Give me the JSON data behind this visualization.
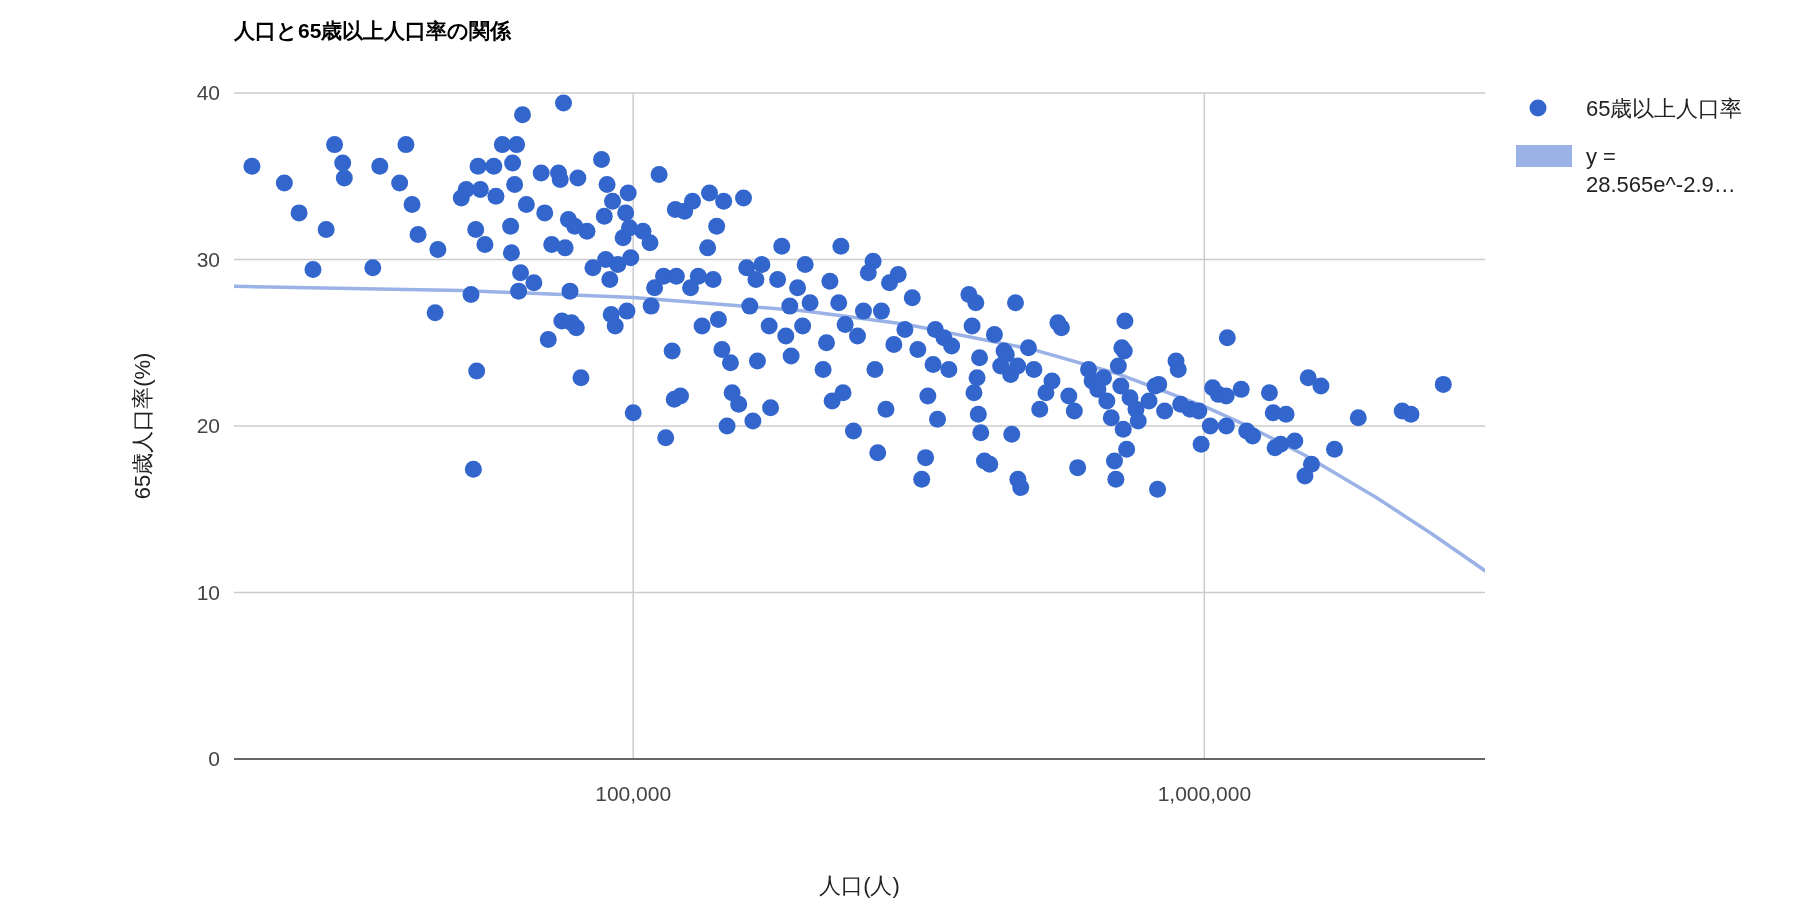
{
  "chart_data": {
    "type": "scatter",
    "title": "人口と65歳以上人口率の関係",
    "xlabel": "人口(人)",
    "ylabel": "65歳人口率(%)",
    "log": "x",
    "grid": true,
    "legend": "right",
    "marker": "circle",
    "xlim": [
      20000,
      3100000
    ],
    "xticks": [
      {
        "value": 100000,
        "label": "100,000"
      },
      {
        "value": 1000000,
        "label": "1,000,000"
      }
    ],
    "ylim": [
      0,
      40
    ],
    "yticks": [
      0,
      10,
      20,
      30,
      40
    ],
    "series": [
      {
        "name": "65歳以上人口率",
        "color": "#3366cc",
        "x": [
          21500,
          24500,
          26000,
          27500,
          29000,
          30000,
          31000,
          31200,
          35000,
          36000,
          39000,
          40000,
          41000,
          42000,
          45000,
          45500,
          50000,
          51000,
          52000,
          52500,
          53000,
          53200,
          53500,
          54000,
          55000,
          57000,
          57500,
          59000,
          61000,
          61200,
          61500,
          62000,
          62500,
          63000,
          63500,
          64000,
          65000,
          67000,
          69000,
          70000,
          71000,
          72000,
          74000,
          74500,
          75000,
          75500,
          76000,
          77000,
          77500,
          78000,
          79000,
          79500,
          80000,
          81000,
          83000,
          85000,
          88000,
          89000,
          89500,
          90000,
          91000,
          91500,
          92000,
          93000,
          94000,
          96000,
          97000,
          97500,
          98000,
          98500,
          99000,
          100000,
          104000,
          107000,
          107500,
          111000,
          109000,
          113000,
          114000,
          117000,
          118000,
          118500,
          119000,
          121000,
          123000,
          126000,
          127000,
          130000,
          132000,
          135000,
          136000,
          138000,
          140000,
          141000,
          143000,
          144000,
          146000,
          148000,
          149000,
          153000,
          156000,
          158000,
          160000,
          162000,
          164000,
          165000,
          168000,
          173000,
          174000,
          179000,
          182000,
          185000,
          188000,
          189000,
          194000,
          198000,
          200000,
          204000,
          215000,
          218000,
          221000,
          223000,
          229000,
          231000,
          233000,
          235000,
          243000,
          247000,
          253000,
          258000,
          263000,
          265000,
          268000,
          272000,
          277000,
          281000,
          286000,
          291000,
          299000,
          308000,
          315000,
          320000,
          325000,
          328000,
          335000,
          338000,
          341000,
          350000,
          357000,
          361000,
          387000,
          392000,
          398000,
          404000,
          400000,
          395000,
          402000,
          406000,
          412000,
          421000,
          429000,
          440000,
          446000,
          450000,
          458000,
          467000,
          471000,
          477000,
          471500,
          460000,
          492000,
          503000,
          515000,
          528000,
          541000,
          554000,
          562000,
          579000,
          592000,
          600000,
          627000,
          636000,
          651000,
          666000,
          675000,
          687000,
          696000,
          700000,
          707000,
          714000,
          717000,
          721000,
          724000,
          726000,
          731000,
          741000,
          759000,
          766000,
          800000,
          820000,
          828000,
          832000,
          852000,
          892000,
          900000,
          909000,
          944000,
          978000,
          987000,
          1024000,
          1034000,
          1058000,
          1092000,
          1097000,
          1092500,
          1160000,
          1186000,
          1215000,
          1300000,
          1320000,
          1390000,
          1330000,
          1360000,
          1440000,
          1520000,
          1600000,
          1540000,
          1500000,
          1690000,
          1860000,
          2220000,
          2300000,
          2620000
        ],
        "values": [
          35.6,
          34.6,
          32.8,
          29.4,
          31.8,
          36.9,
          35.8,
          34.9,
          29.5,
          35.6,
          34.6,
          36.9,
          33.3,
          31.5,
          26.8,
          30.6,
          33.7,
          34.2,
          27.9,
          17.4,
          31.8,
          23.3,
          35.6,
          34.2,
          30.9,
          35.6,
          33.8,
          36.9,
          32.0,
          30.4,
          35.8,
          34.5,
          36.9,
          28.1,
          29.2,
          38.7,
          33.3,
          28.6,
          35.2,
          32.8,
          25.2,
          30.9,
          35.2,
          34.8,
          26.3,
          39.4,
          30.7,
          32.4,
          28.1,
          26.2,
          32.0,
          25.9,
          34.9,
          22.9,
          31.7,
          29.5,
          36.0,
          32.6,
          30.0,
          34.5,
          28.8,
          26.7,
          33.5,
          26.0,
          29.7,
          31.3,
          32.8,
          26.9,
          34.0,
          31.9,
          30.1,
          20.8,
          31.7,
          31.0,
          27.2,
          35.1,
          28.3,
          29.0,
          19.3,
          24.5,
          21.6,
          33.0,
          29.0,
          21.8,
          32.9,
          28.3,
          33.5,
          29.0,
          26.0,
          30.7,
          34.0,
          28.8,
          32.0,
          26.4,
          24.6,
          33.5,
          20.0,
          23.8,
          22.0,
          21.3,
          33.7,
          29.5,
          27.2,
          20.3,
          28.8,
          23.9,
          29.7,
          26.0,
          21.1,
          28.8,
          30.8,
          25.4,
          27.2,
          24.2,
          28.3,
          26.0,
          29.7,
          27.4,
          23.4,
          25.0,
          28.7,
          21.5,
          27.4,
          30.8,
          22.0,
          26.1,
          19.7,
          25.4,
          26.9,
          29.2,
          29.9,
          23.4,
          18.4,
          26.9,
          21.0,
          28.6,
          24.9,
          29.1,
          25.8,
          27.7,
          24.6,
          16.8,
          18.1,
          21.8,
          23.7,
          25.8,
          20.4,
          25.3,
          23.4,
          24.8,
          27.9,
          26.0,
          27.4,
          24.1,
          22.9,
          22.0,
          20.7,
          19.6,
          17.9,
          17.7,
          25.5,
          23.6,
          24.5,
          24.3,
          23.1,
          27.4,
          23.6,
          16.3,
          16.8,
          19.5,
          24.7,
          23.4,
          21.0,
          22.0,
          22.7,
          26.2,
          25.9,
          21.8,
          20.9,
          17.5,
          23.4,
          22.7,
          22.2,
          22.9,
          21.5,
          20.5,
          17.9,
          16.8,
          23.6,
          22.4,
          24.7,
          19.8,
          24.5,
          26.3,
          18.6,
          21.7,
          21.0,
          20.3,
          21.5,
          22.4,
          16.2,
          22.5,
          20.9,
          23.9,
          23.4,
          21.3,
          21.0,
          20.9,
          18.9,
          20.0,
          22.3,
          21.9,
          21.8,
          25.3,
          20.0,
          22.2,
          19.7,
          19.4,
          22.0,
          20.8,
          20.7,
          18.7,
          18.9,
          19.1,
          22.9,
          22.4,
          17.7,
          17.0,
          18.6,
          20.5,
          20.9,
          20.7,
          22.5
        ]
      },
      {
        "name": "y = 28.565e^-2.9…",
        "type": "line",
        "marker": "none",
        "color": "#9ab2e6",
        "x": [
          20000,
          50000,
          100000,
          200000,
          300000,
          500000,
          700000,
          1000000,
          1200000,
          1500000,
          2000000,
          2500000,
          3100000
        ],
        "values": [
          28.39,
          28.14,
          27.72,
          26.91,
          26.11,
          24.6,
          23.17,
          21.18,
          19.95,
          18.24,
          15.71,
          13.53,
          11.31
        ]
      }
    ]
  }
}
